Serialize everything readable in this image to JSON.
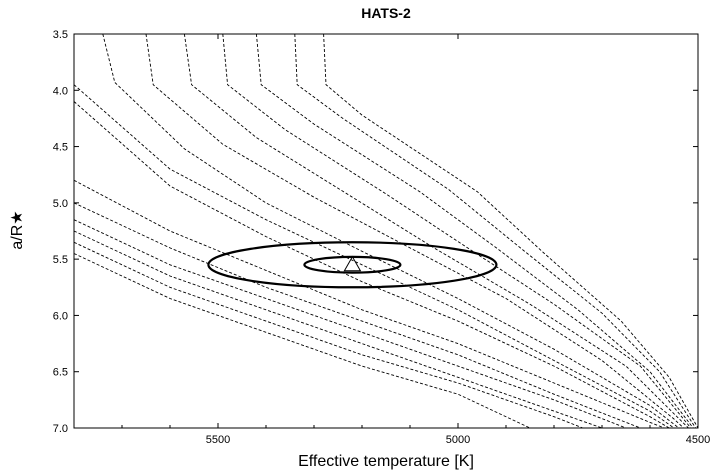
{
  "chart_data": {
    "type": "line",
    "title": "HATS-2",
    "xlabel": "Effective temperature [K]",
    "ylabel": "a/R★",
    "xlim": [
      5800,
      4500
    ],
    "ylim": [
      7.0,
      3.5
    ],
    "x_reversed": true,
    "y_reversed": true,
    "grid": false,
    "x_ticks": [
      {
        "value": 5500,
        "label": "5500"
      },
      {
        "value": 5000,
        "label": "5000"
      },
      {
        "value": 4500,
        "label": "4500"
      }
    ],
    "y_ticks": [
      {
        "value": 3.5,
        "label": "3.5"
      },
      {
        "value": 4.0,
        "label": "4.0"
      },
      {
        "value": 4.5,
        "label": "4.5"
      },
      {
        "value": 5.0,
        "label": "5.0"
      },
      {
        "value": 5.5,
        "label": "5.5"
      },
      {
        "value": 6.0,
        "label": "6.0"
      },
      {
        "value": 6.5,
        "label": "6.5"
      },
      {
        "value": 7.0,
        "label": "7.0"
      }
    ],
    "isochrones": [
      [
        [
          5800,
          4.1
        ],
        [
          5600,
          4.85
        ],
        [
          5400,
          5.3
        ],
        [
          5200,
          5.7
        ],
        [
          5000,
          6.05
        ],
        [
          4800,
          6.45
        ],
        [
          4600,
          6.9
        ],
        [
          4560,
          7.0
        ]
      ],
      [
        [
          5800,
          3.95
        ],
        [
          5600,
          4.7
        ],
        [
          5400,
          5.15
        ],
        [
          5200,
          5.55
        ],
        [
          5000,
          5.95
        ],
        [
          4800,
          6.4
        ],
        [
          4600,
          6.85
        ],
        [
          4550,
          7.0
        ]
      ],
      [
        [
          5740,
          3.5
        ],
        [
          5715,
          3.93
        ],
        [
          5570,
          4.52
        ],
        [
          5400,
          5.0
        ],
        [
          5200,
          5.43
        ],
        [
          5000,
          5.85
        ],
        [
          4800,
          6.3
        ],
        [
          4600,
          6.8
        ],
        [
          4540,
          7.0
        ]
      ],
      [
        [
          5650,
          3.5
        ],
        [
          5635,
          3.95
        ],
        [
          5490,
          4.48
        ],
        [
          5300,
          4.95
        ],
        [
          5100,
          5.4
        ],
        [
          4900,
          5.85
        ],
        [
          4700,
          6.4
        ],
        [
          4550,
          6.92
        ],
        [
          4530,
          7.0
        ]
      ],
      [
        [
          5570,
          3.5
        ],
        [
          5555,
          3.95
        ],
        [
          5420,
          4.42
        ],
        [
          5220,
          4.95
        ],
        [
          5050,
          5.4
        ],
        [
          4850,
          5.9
        ],
        [
          4650,
          6.45
        ],
        [
          4520,
          7.0
        ]
      ],
      [
        [
          5490,
          3.5
        ],
        [
          5480,
          3.95
        ],
        [
          5360,
          4.35
        ],
        [
          5150,
          4.92
        ],
        [
          4980,
          5.4
        ],
        [
          4800,
          5.9
        ],
        [
          4620,
          6.45
        ],
        [
          4515,
          7.0
        ]
      ],
      [
        [
          5420,
          3.5
        ],
        [
          5410,
          3.95
        ],
        [
          5300,
          4.3
        ],
        [
          5080,
          4.9
        ],
        [
          4920,
          5.4
        ],
        [
          4750,
          5.95
        ],
        [
          4600,
          6.5
        ],
        [
          4510,
          7.0
        ]
      ],
      [
        [
          5340,
          3.5
        ],
        [
          5335,
          3.95
        ],
        [
          5240,
          4.25
        ],
        [
          5020,
          4.88
        ],
        [
          4870,
          5.4
        ],
        [
          4700,
          5.98
        ],
        [
          4580,
          6.5
        ],
        [
          4505,
          7.0
        ]
      ],
      [
        [
          5280,
          3.5
        ],
        [
          5275,
          3.95
        ],
        [
          5200,
          4.22
        ],
        [
          4960,
          4.9
        ],
        [
          4820,
          5.45
        ],
        [
          4660,
          6.05
        ],
        [
          4560,
          6.55
        ],
        [
          4500,
          7.0
        ]
      ],
      [
        [
          5800,
          4.8
        ],
        [
          5600,
          5.25
        ],
        [
          5400,
          5.6
        ],
        [
          5200,
          5.95
        ],
        [
          5000,
          6.25
        ],
        [
          4800,
          6.6
        ],
        [
          4600,
          6.95
        ],
        [
          4570,
          7.0
        ]
      ],
      [
        [
          5800,
          5.0
        ],
        [
          5600,
          5.4
        ],
        [
          5400,
          5.75
        ],
        [
          5200,
          6.05
        ],
        [
          5000,
          6.35
        ],
        [
          4800,
          6.7
        ],
        [
          4620,
          7.0
        ]
      ],
      [
        [
          5800,
          5.15
        ],
        [
          5600,
          5.55
        ],
        [
          5400,
          5.85
        ],
        [
          5200,
          6.15
        ],
        [
          5000,
          6.45
        ],
        [
          4800,
          6.75
        ],
        [
          4650,
          7.0
        ]
      ],
      [
        [
          5800,
          5.25
        ],
        [
          5600,
          5.65
        ],
        [
          5400,
          5.95
        ],
        [
          5200,
          6.25
        ],
        [
          5000,
          6.55
        ],
        [
          4800,
          6.85
        ],
        [
          4700,
          7.0
        ]
      ],
      [
        [
          5800,
          5.35
        ],
        [
          5600,
          5.75
        ],
        [
          5400,
          6.05
        ],
        [
          5200,
          6.35
        ],
        [
          5000,
          6.6
        ],
        [
          4800,
          6.9
        ],
        [
          4740,
          7.0
        ]
      ],
      [
        [
          5800,
          5.45
        ],
        [
          5600,
          5.85
        ],
        [
          5400,
          6.15
        ],
        [
          5200,
          6.45
        ],
        [
          5000,
          6.7
        ],
        [
          4850,
          7.0
        ]
      ]
    ],
    "measurement": {
      "teff": 5220,
      "a_over_rstar": 5.55,
      "ellipses": [
        {
          "sigma": 1,
          "dteff": 100,
          "da": 0.07
        },
        {
          "sigma": 3,
          "dteff": 300,
          "da": 0.2
        }
      ]
    },
    "colors": {
      "line": "#000000",
      "background": "#ffffff"
    }
  }
}
